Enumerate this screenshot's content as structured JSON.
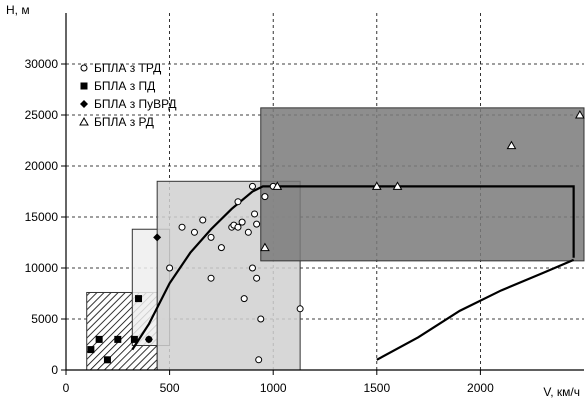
{
  "chart_data": {
    "type": "scatter",
    "title": "",
    "xlabel": "V, км/ч",
    "ylabel": "H, м",
    "xlim": [
      0,
      2500
    ],
    "ylim": [
      0,
      35000
    ],
    "x_ticks": [
      0,
      500,
      1000,
      1500,
      2000
    ],
    "y_ticks": [
      0,
      5000,
      10000,
      15000,
      20000,
      25000,
      30000
    ],
    "grid": "dashed",
    "legend_position": "top-left",
    "regions": [
      {
        "name": "ПД",
        "x": [
          100,
          440
        ],
        "y": [
          0,
          7600
        ],
        "fill": "hatched"
      },
      {
        "name": "ПуВРД",
        "x": [
          320,
          500
        ],
        "y": [
          2400,
          13800
        ],
        "fill": "#eeeeee"
      },
      {
        "name": "ТРД",
        "x": [
          440,
          1130
        ],
        "y": [
          0,
          18500
        ],
        "fill": "#d0d0d0"
      },
      {
        "name": "РД",
        "x": [
          940,
          2500
        ],
        "y": [
          10700,
          25700
        ],
        "fill": "#7a7a7a"
      }
    ],
    "series": [
      {
        "name": "БПЛА з ТРД",
        "marker": "circle",
        "points": [
          [
            400,
            3000
          ],
          [
            500,
            10000
          ],
          [
            560,
            14000
          ],
          [
            620,
            13500
          ],
          [
            660,
            14700
          ],
          [
            700,
            13000
          ],
          [
            700,
            9000
          ],
          [
            750,
            12000
          ],
          [
            800,
            14000
          ],
          [
            810,
            14200
          ],
          [
            830,
            16500
          ],
          [
            830,
            14000
          ],
          [
            850,
            14500
          ],
          [
            860,
            7000
          ],
          [
            880,
            13500
          ],
          [
            900,
            18000
          ],
          [
            900,
            10000
          ],
          [
            910,
            15300
          ],
          [
            920,
            14300
          ],
          [
            920,
            9000
          ],
          [
            930,
            1000
          ],
          [
            940,
            5000
          ],
          [
            960,
            17000
          ],
          [
            1000,
            18000
          ],
          [
            1130,
            6000
          ]
        ]
      },
      {
        "name": "БПЛА з ПД",
        "marker": "square",
        "points": [
          [
            120,
            2000
          ],
          [
            160,
            3000
          ],
          [
            200,
            1000
          ],
          [
            250,
            3000
          ],
          [
            330,
            3000
          ],
          [
            350,
            7000
          ]
        ]
      },
      {
        "name": "БПЛА з ПуВРД",
        "marker": "diamond",
        "points": [
          [
            400,
            3000
          ],
          [
            440,
            13000
          ]
        ]
      },
      {
        "name": "БПЛА з РД",
        "marker": "triangle",
        "points": [
          [
            960,
            12000
          ],
          [
            1020,
            18000
          ],
          [
            1500,
            18000
          ],
          [
            1600,
            18000
          ],
          [
            2150,
            22000
          ],
          [
            2480,
            25000
          ]
        ]
      }
    ],
    "lines": [
      {
        "points": [
          [
            320,
            2000
          ],
          [
            400,
            4500
          ],
          [
            500,
            8500
          ],
          [
            600,
            11500
          ],
          [
            700,
            13800
          ],
          [
            800,
            15800
          ],
          [
            900,
            17500
          ],
          [
            950,
            18000
          ],
          [
            1500,
            18000
          ],
          [
            2450,
            18000
          ],
          [
            2450,
            11000
          ]
        ]
      },
      {
        "points": [
          [
            1500,
            1000
          ],
          [
            1700,
            3200
          ],
          [
            1900,
            5800
          ],
          [
            2100,
            7800
          ],
          [
            2300,
            9500
          ],
          [
            2450,
            10800
          ]
        ]
      }
    ]
  }
}
